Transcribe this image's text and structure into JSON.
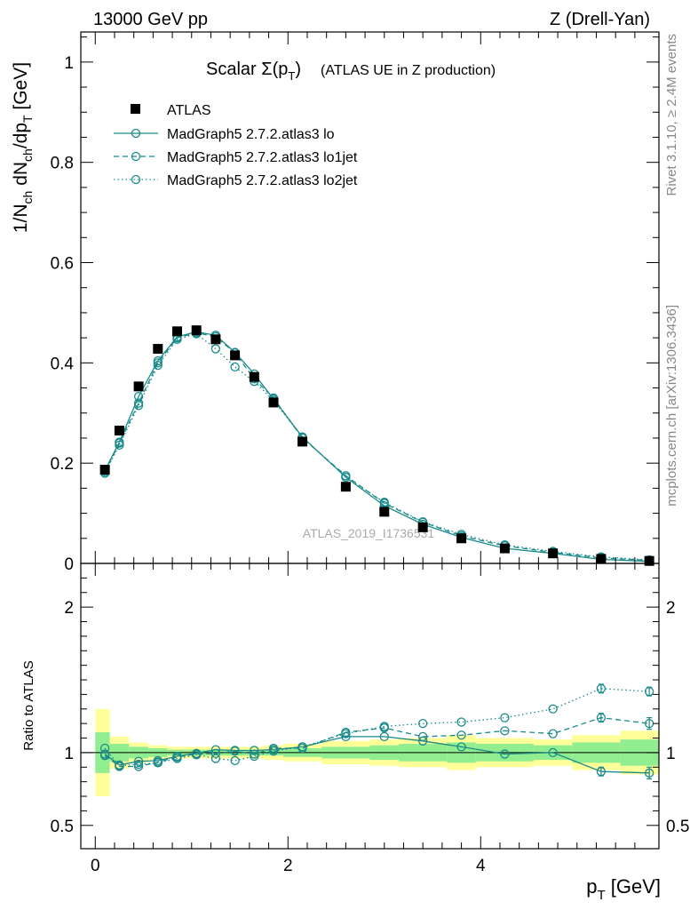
{
  "header": {
    "left": "13000 GeV pp",
    "right": "Z (Drell-Yan)"
  },
  "side_labels": {
    "rivet": "Rivet 3.1.10, ≥ 2.4M events",
    "mcplots": "mcplots.cern.ch [arXiv:1306.3436]"
  },
  "colors": {
    "mc": "#1a8a8a",
    "data": "#000000",
    "band_green": "#90ee90",
    "band_yellow": "#ffff99"
  },
  "chart_data": [
    {
      "type": "scatter",
      "title_main": "Scalar Σ(p",
      "title_sub": "T",
      "title_close": ")",
      "title_rest": "(ATLAS UE in Z production)",
      "ylabel": "1/N_ch dN_ch/dp_T [GeV]",
      "watermark": "ATLAS_2019_I1736531",
      "xlim": [
        -0.15,
        5.85
      ],
      "ylim": [
        0,
        1.06
      ],
      "yticks": [
        0,
        0.2,
        0.4,
        0.6,
        0.8,
        1
      ],
      "ytick_labels": [
        "0",
        "0.2",
        "0.4",
        "0.6",
        "0.8",
        "1"
      ],
      "x": [
        0.1,
        0.25,
        0.45,
        0.65,
        0.85,
        1.05,
        1.25,
        1.45,
        1.65,
        1.85,
        2.15,
        2.6,
        3.0,
        3.4,
        3.8,
        4.25,
        4.75,
        5.25,
        5.75
      ],
      "series": [
        {
          "name": "ATLAS",
          "style": "data",
          "values": [
            0.187,
            0.265,
            0.353,
            0.428,
            0.463,
            0.465,
            0.447,
            0.415,
            0.372,
            0.321,
            0.243,
            0.153,
            0.103,
            0.072,
            0.05,
            0.03,
            0.02,
            0.009,
            0.005
          ]
        },
        {
          "name": "MadGraph5 2.7.2.atlas3 lo",
          "style": "solid",
          "values": [
            0.185,
            0.242,
            0.333,
            0.404,
            0.452,
            0.462,
            0.455,
            0.421,
            0.378,
            0.328,
            0.252,
            0.172,
            0.115,
            0.078,
            0.052,
            0.03,
            0.02,
            0.008,
            0.004
          ]
        },
        {
          "name": "MadGraph5 2.7.2.atlas3 lo1jet",
          "style": "dashed",
          "values": [
            0.183,
            0.24,
            0.32,
            0.4,
            0.45,
            0.46,
            0.452,
            0.42,
            0.368,
            0.33,
            0.25,
            0.175,
            0.12,
            0.082,
            0.055,
            0.035,
            0.022,
            0.011,
            0.006
          ]
        },
        {
          "name": "MadGraph5 2.7.2.atlas3 lo2jet",
          "style": "dotted",
          "values": [
            0.18,
            0.236,
            0.315,
            0.395,
            0.447,
            0.458,
            0.428,
            0.392,
            0.363,
            0.325,
            0.252,
            0.172,
            0.122,
            0.083,
            0.058,
            0.037,
            0.024,
            0.013,
            0.007
          ]
        }
      ]
    },
    {
      "type": "scatter",
      "ylabel": "Ratio to ATLAS",
      "xlabel": "p_T [GeV]",
      "xlim": [
        -0.15,
        5.85
      ],
      "ylim": [
        0.34,
        2.3
      ],
      "yticks": [
        0.5,
        1,
        2
      ],
      "ytick_labels": [
        "0.5",
        "1",
        "2"
      ],
      "xticks": [
        0,
        2,
        4
      ],
      "xtick_labels": [
        "0",
        "2",
        "4"
      ],
      "x": [
        0.1,
        0.25,
        0.45,
        0.65,
        0.85,
        1.05,
        1.25,
        1.45,
        1.65,
        1.85,
        2.15,
        2.6,
        3.0,
        3.4,
        3.8,
        4.25,
        4.75,
        5.25,
        5.75
      ],
      "bin_edges": [
        0.0,
        0.15,
        0.35,
        0.55,
        0.75,
        0.95,
        1.15,
        1.35,
        1.55,
        1.75,
        1.95,
        2.35,
        2.85,
        3.15,
        3.65,
        3.95,
        4.55,
        4.95,
        5.45,
        5.95
      ],
      "band_green": [
        0.14,
        0.06,
        0.04,
        0.03,
        0.02,
        0.02,
        0.02,
        0.02,
        0.02,
        0.02,
        0.03,
        0.04,
        0.05,
        0.06,
        0.07,
        0.06,
        0.05,
        0.07,
        0.09
      ],
      "band_yellow": [
        0.3,
        0.11,
        0.07,
        0.05,
        0.04,
        0.04,
        0.04,
        0.04,
        0.04,
        0.05,
        0.06,
        0.08,
        0.09,
        0.1,
        0.12,
        0.1,
        0.09,
        0.12,
        0.15
      ],
      "series": [
        {
          "name": "MadGraph5 2.7.2.atlas3 lo",
          "style": "solid",
          "values": [
            0.99,
            0.915,
            0.94,
            0.945,
            0.975,
            0.995,
            1.02,
            1.015,
            1.015,
            1.02,
            1.04,
            1.11,
            1.11,
            1.08,
            1.04,
            0.99,
            1.0,
            0.87,
            0.86
          ]
        },
        {
          "name": "MadGraph5 2.7.2.atlas3 lo1jet",
          "style": "dashed",
          "values": [
            0.98,
            0.905,
            0.905,
            0.935,
            0.97,
            0.99,
            0.995,
            1.01,
            0.99,
            1.03,
            1.03,
            1.14,
            1.17,
            1.11,
            1.12,
            1.15,
            1.13,
            1.24,
            1.2
          ]
        },
        {
          "name": "MadGraph5 2.7.2.atlas3 lo2jet",
          "style": "dotted",
          "values": [
            1.03,
            0.91,
            0.92,
            0.93,
            0.96,
            0.985,
            0.96,
            0.945,
            0.975,
            1.01,
            1.04,
            1.13,
            1.18,
            1.2,
            1.21,
            1.24,
            1.3,
            1.44,
            1.42
          ]
        }
      ],
      "errors": [
        [
          0.01,
          0.01,
          0.01,
          0.01,
          0.01,
          0.01,
          0.01,
          0.01,
          0.01,
          0.01,
          0.01,
          0.01,
          0.01,
          0.01,
          0.01,
          0.01,
          0.02,
          0.03,
          0.04
        ],
        [
          0.01,
          0.01,
          0.01,
          0.01,
          0.01,
          0.01,
          0.01,
          0.01,
          0.01,
          0.01,
          0.01,
          0.01,
          0.01,
          0.01,
          0.01,
          0.02,
          0.02,
          0.03,
          0.04
        ],
        [
          0.01,
          0.01,
          0.01,
          0.01,
          0.01,
          0.01,
          0.01,
          0.01,
          0.01,
          0.01,
          0.01,
          0.01,
          0.01,
          0.01,
          0.01,
          0.02,
          0.02,
          0.03,
          0.03
        ]
      ]
    }
  ]
}
